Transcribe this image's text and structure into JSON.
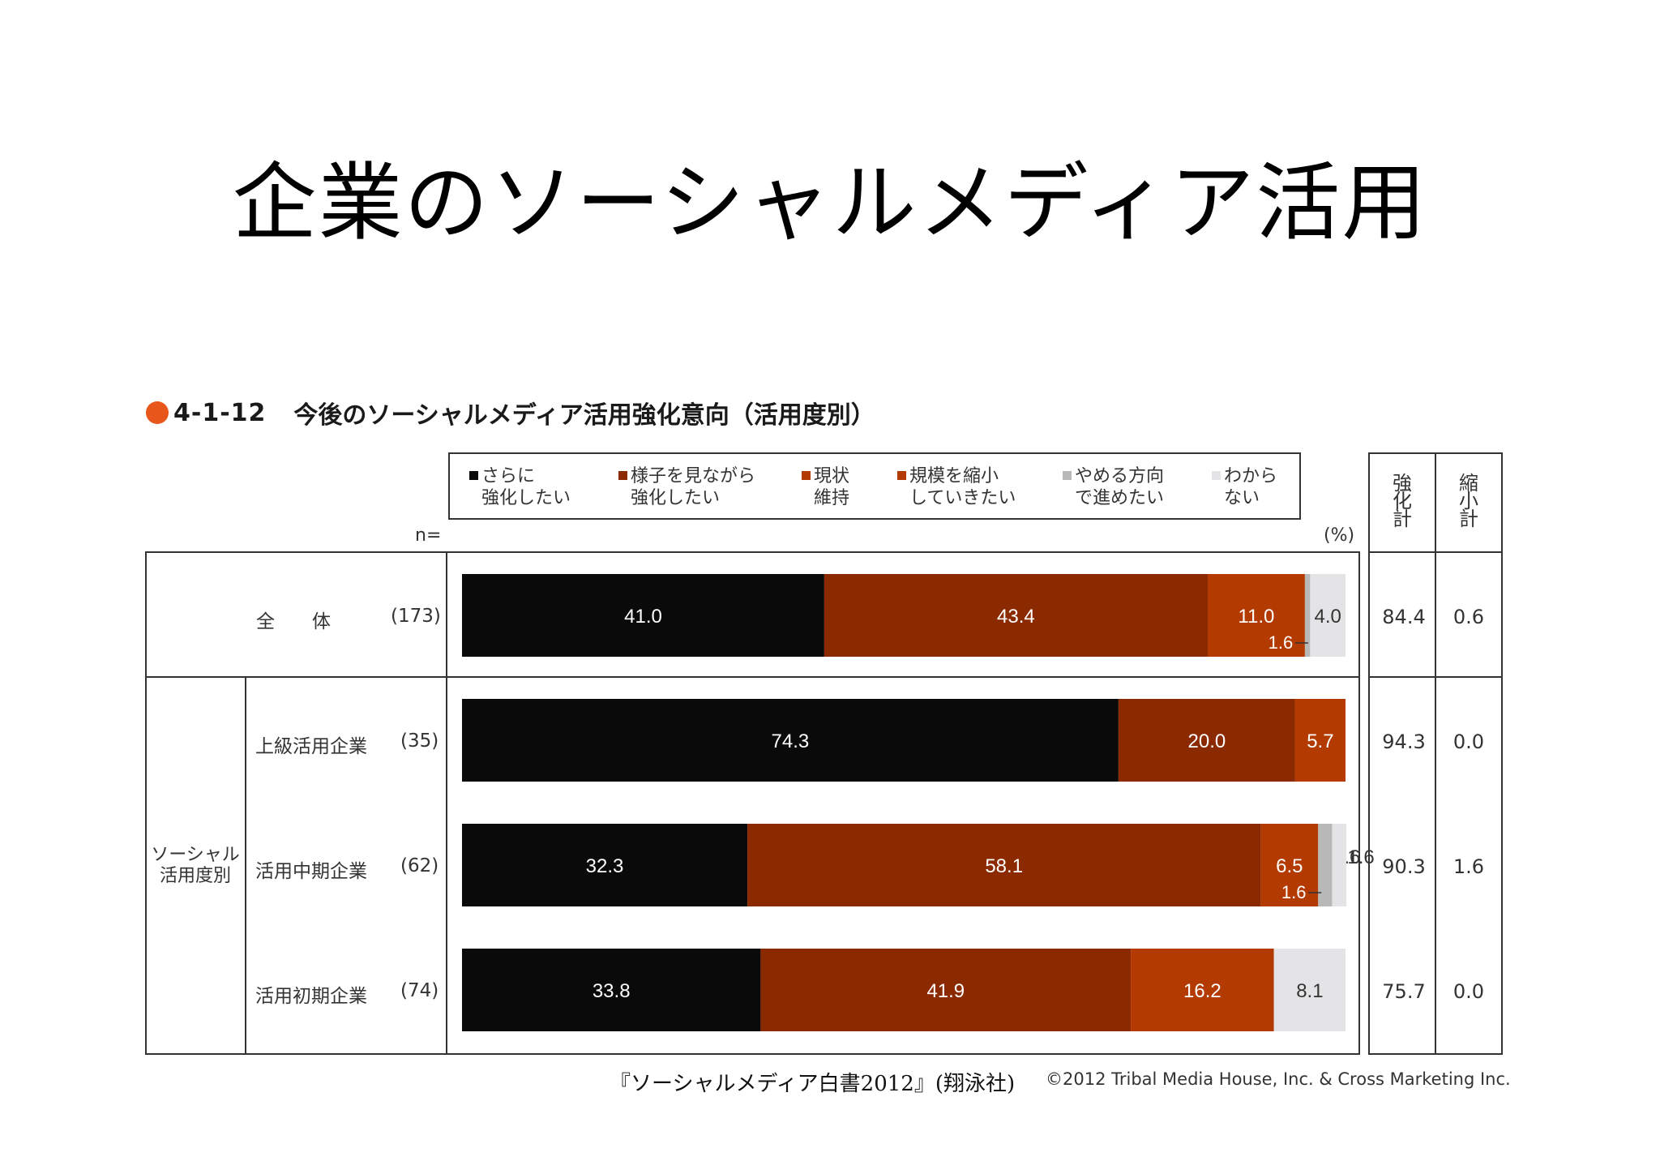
{
  "slide_title": "企業のソーシャルメディア活用",
  "figure": {
    "number": "4-1-12",
    "title": "今後のソーシャルメディア活用強化意向（活用度別）"
  },
  "n_label": "n=",
  "unit_label": "(%)",
  "group_label_lines": [
    "ソーシャル",
    "活用度別"
  ],
  "extra_headers": [
    {
      "lines": [
        "強",
        "化",
        "計"
      ]
    },
    {
      "lines": [
        "縮",
        "小",
        "計"
      ]
    }
  ],
  "legend": [
    {
      "line1": "さらに",
      "line2": "強化したい",
      "color": "#0a0a0a"
    },
    {
      "line1": "様子を見ながら",
      "line2": "強化したい",
      "color": "#8b2a00"
    },
    {
      "line1": "現状",
      "line2": "維持",
      "color": "#b33a00"
    },
    {
      "line1": "規模を縮小",
      "line2": "していきたい",
      "color": "#b33a00"
    },
    {
      "line1": "やめる方向",
      "line2": "で進めたい",
      "color": "#b8b8b8"
    },
    {
      "line1": "わから",
      "line2": "ない",
      "color": "#e4e4e6"
    }
  ],
  "rows": [
    {
      "label": "全　　体",
      "n": "(173)",
      "strengthen_total": "84.4",
      "shrink_total": "0.6"
    },
    {
      "label": "上級活用企業",
      "n": "(35)",
      "strengthen_total": "94.3",
      "shrink_total": "0.0"
    },
    {
      "label": "活用中期企業",
      "n": "(62)",
      "strengthen_total": "90.3",
      "shrink_total": "1.6"
    },
    {
      "label": "活用初期企業",
      "n": "(74)",
      "strengthen_total": "75.7",
      "shrink_total": "0.0"
    }
  ],
  "chart_data": {
    "type": "bar",
    "orientation": "horizontal",
    "stacked": true,
    "categories": [
      "全　　体",
      "上級活用企業",
      "活用中期企業",
      "活用初期企業"
    ],
    "series": [
      {
        "name": "さらに強化したい",
        "values": [
          41.0,
          74.3,
          32.3,
          33.8
        ],
        "labels": [
          "41.0",
          "74.3",
          "32.3",
          "33.8"
        ],
        "color": "#0a0a0a"
      },
      {
        "name": "様子を見ながら強化したい",
        "values": [
          43.4,
          20.0,
          58.1,
          41.9
        ],
        "labels": [
          "43.4",
          "20.0",
          "58.1",
          "41.9"
        ],
        "color": "#8b2a00"
      },
      {
        "name": "現状維持",
        "values": [
          11.0,
          5.7,
          6.5,
          16.2
        ],
        "labels": [
          "11.0",
          "5.7",
          "6.5",
          "16.2"
        ],
        "color": "#b33a00"
      },
      {
        "name": "規模を縮小していきたい",
        "values": [
          0.0,
          0.0,
          0.0,
          0.0
        ],
        "labels": [
          "",
          "",
          "",
          ""
        ],
        "color": "#b33a00"
      },
      {
        "name": "やめる方向で進めたい",
        "values": [
          0.6,
          0.0,
          1.6,
          0.0
        ],
        "labels": [
          "",
          "",
          "1.6",
          ""
        ],
        "color": "#b8b8b8"
      },
      {
        "name": "わからない",
        "values": [
          4.0,
          0.0,
          1.6,
          8.1
        ],
        "labels": [
          "4.0",
          "",
          "1.6",
          "8.1"
        ],
        "color": "#e4e4e6"
      }
    ],
    "xlim": [
      0,
      100
    ],
    "xlabel": "",
    "ylabel": "",
    "unit": "(%)",
    "source": "『ソーシャルメディア白書2012』(翔泳社)",
    "copyright": "©2012 Tribal Media House, Inc. & Cross Marketing Inc."
  }
}
